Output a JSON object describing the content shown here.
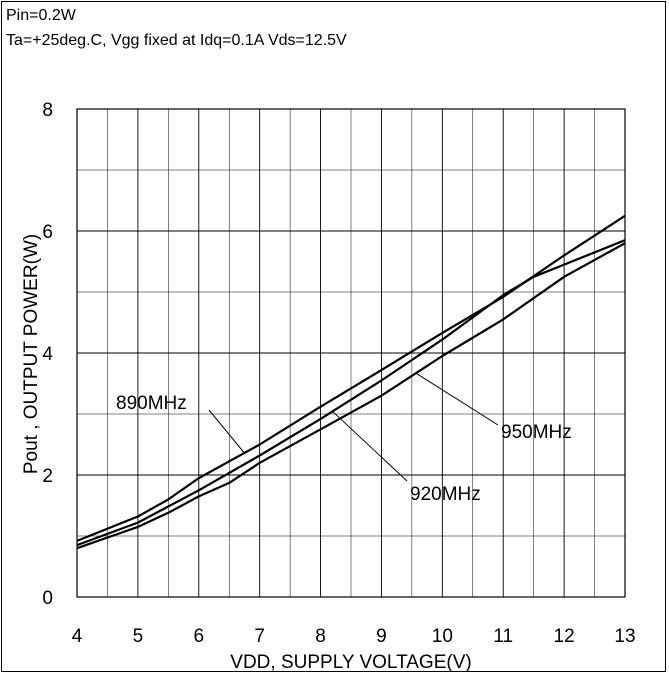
{
  "conditions": {
    "line1": "Pin=0.2W",
    "line2": "Ta=+25deg.C, Vgg fixed at Idq=0.1A Vds=12.5V"
  },
  "chart_data": {
    "type": "line",
    "xlabel": "VDD, SUPPLY VOLTAGE(V)",
    "ylabel": "Pout , OUTPUT POWER(W)",
    "xlim": [
      4,
      13
    ],
    "ylim": [
      0,
      8
    ],
    "xticks": [
      "4",
      "5",
      "6",
      "7",
      "8",
      "9",
      "10",
      "11",
      "12",
      "13"
    ],
    "yticks": [
      "0",
      "2",
      "4",
      "6",
      "8"
    ],
    "grid": true,
    "grid_x_step": 0.5,
    "grid_y_step": 1,
    "line_color": "#000000",
    "series": [
      {
        "name": "890MHz",
        "x": [
          4,
          5,
          5.5,
          6,
          7,
          8,
          9,
          10,
          11,
          12,
          13
        ],
        "y": [
          0.92,
          1.32,
          1.6,
          1.95,
          2.5,
          3.12,
          3.72,
          4.33,
          4.92,
          5.6,
          6.25
        ]
      },
      {
        "name": "920MHz",
        "x": [
          4,
          5,
          6,
          7,
          8,
          9,
          10,
          11,
          11.5,
          12,
          13
        ],
        "y": [
          0.85,
          1.22,
          1.75,
          2.32,
          2.92,
          3.55,
          4.22,
          4.95,
          5.25,
          5.45,
          5.85
        ]
      },
      {
        "name": "950MHz",
        "x": [
          4,
          5,
          5.5,
          6,
          6.5,
          7,
          8,
          9,
          10,
          11,
          12,
          13
        ],
        "y": [
          0.8,
          1.15,
          1.38,
          1.65,
          1.87,
          2.2,
          2.75,
          3.3,
          3.95,
          4.55,
          5.25,
          5.8
        ]
      }
    ],
    "annotations": [
      {
        "text": "890MHz",
        "series": "890MHz"
      },
      {
        "text": "920MHz",
        "series": "920MHz"
      },
      {
        "text": "950MHz",
        "series": "950MHz"
      }
    ]
  }
}
